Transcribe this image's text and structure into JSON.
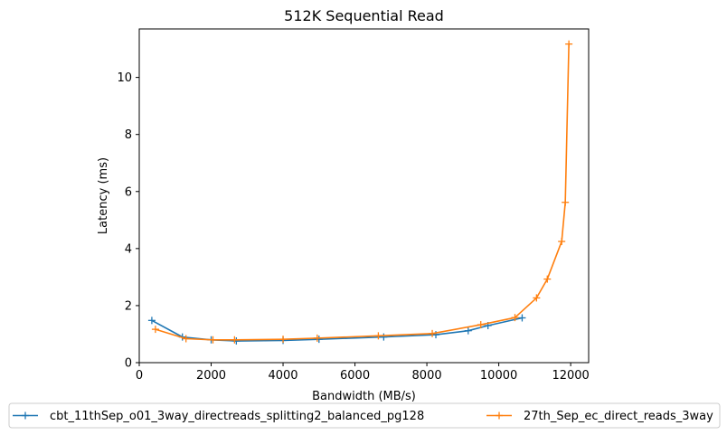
{
  "chart_data": {
    "type": "line",
    "title": "512K  Sequential Read",
    "xlabel": "Bandwidth (MB/s)",
    "ylabel": "Latency (ms)",
    "xlim": [
      0,
      12500
    ],
    "ylim": [
      0,
      11.7
    ],
    "xticks": [
      0,
      2000,
      4000,
      6000,
      8000,
      10000,
      12000
    ],
    "yticks": [
      0,
      2,
      4,
      6,
      8,
      10
    ],
    "grid": false,
    "legend_position": "bottom-center",
    "marker": "plus",
    "series": [
      {
        "name": "cbt_11thSep_o01_3way_directreads_splitting2_balanced_pg128",
        "color": "#1f77b4",
        "x": [
          350,
          1200,
          2000,
          2700,
          4000,
          5000,
          6800,
          8250,
          9150,
          9700,
          10650
        ],
        "y": [
          1.48,
          0.9,
          0.8,
          0.76,
          0.78,
          0.82,
          0.9,
          0.98,
          1.12,
          1.3,
          1.57
        ]
      },
      {
        "name": "27th_Sep_ec_direct_reads_3way",
        "color": "#ff7f0e",
        "x": [
          450,
          1300,
          2050,
          2650,
          4000,
          4950,
          6650,
          8150,
          9500,
          10450,
          11050,
          11350,
          11750,
          11850,
          11950
        ],
        "y": [
          1.17,
          0.84,
          0.8,
          0.8,
          0.82,
          0.86,
          0.94,
          1.02,
          1.33,
          1.58,
          2.27,
          2.93,
          4.25,
          5.62,
          11.17
        ]
      }
    ]
  }
}
